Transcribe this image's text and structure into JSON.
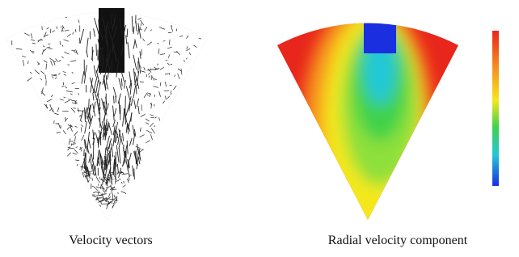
{
  "panels": [
    {
      "caption": "Velocity vectors"
    },
    {
      "caption": "Radial velocity component"
    }
  ]
}
